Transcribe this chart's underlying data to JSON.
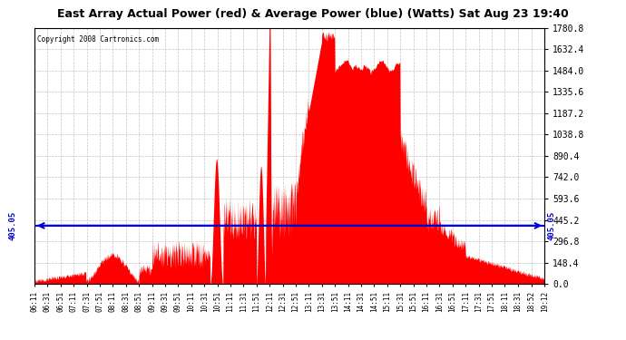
{
  "title": "East Array Actual Power (red) & Average Power (blue) (Watts) Sat Aug 23 19:40",
  "copyright": "Copyright 2008 Cartronics.com",
  "ylim": [
    0.0,
    1780.8
  ],
  "yticks": [
    0.0,
    148.4,
    296.8,
    445.2,
    593.6,
    742.0,
    890.4,
    1038.8,
    1187.2,
    1335.6,
    1484.0,
    1632.4,
    1780.8
  ],
  "avg_power": 405.05,
  "fill_color": "#ff0000",
  "avg_line_color": "#0000cc",
  "grid_color": "#aaaaaa",
  "time_labels": [
    "06:11",
    "06:31",
    "06:51",
    "07:11",
    "07:31",
    "07:51",
    "08:11",
    "08:31",
    "08:51",
    "09:11",
    "09:31",
    "09:51",
    "10:11",
    "10:31",
    "10:51",
    "11:11",
    "11:31",
    "11:51",
    "12:11",
    "12:31",
    "12:51",
    "13:11",
    "13:31",
    "13:51",
    "14:11",
    "14:31",
    "14:51",
    "15:11",
    "15:31",
    "15:51",
    "16:11",
    "16:31",
    "16:51",
    "17:11",
    "17:31",
    "17:51",
    "18:11",
    "18:31",
    "18:52",
    "19:12"
  ],
  "avg_label": "405.05",
  "title_bg": "#c8c8c8",
  "plot_bg": "#ffffff"
}
